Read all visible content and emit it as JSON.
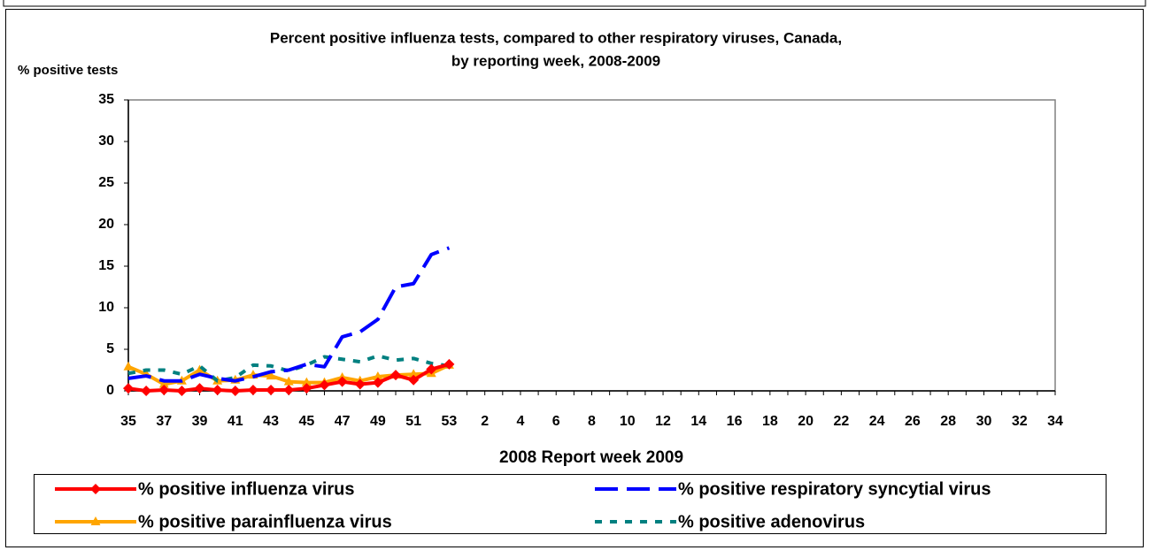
{
  "chart_data": {
    "type": "line",
    "title": [
      "Percent positive influenza tests, compared to other respiratory viruses, Canada,",
      "by reporting week, 2008-2009"
    ],
    "y_label": "% positive tests",
    "x_label": "2008  Report week  2009",
    "categories": [
      "35",
      null,
      "37",
      null,
      "39",
      null,
      "41",
      null,
      "43",
      null,
      "45",
      null,
      "47",
      null,
      "49",
      null,
      "51",
      null,
      "53",
      null,
      "2",
      null,
      "4",
      null,
      "6",
      null,
      "8",
      null,
      "10",
      null,
      "12",
      null,
      "14",
      null,
      "16",
      null,
      "18",
      null,
      "20",
      null,
      "22",
      null,
      "24",
      null,
      "26",
      null,
      "28",
      null,
      "30",
      null,
      "32",
      null,
      "34"
    ],
    "ylim": [
      0,
      35
    ],
    "yticks": [
      0,
      5,
      10,
      15,
      20,
      25,
      30,
      35
    ],
    "grid": false,
    "series": [
      {
        "name": "% positive influenza virus",
        "color": "#ff0000",
        "style": "solid",
        "marker": "diamond",
        "values": [
          0.3,
          0,
          0.1,
          0,
          0.3,
          0.1,
          0,
          0.1,
          0.1,
          0.1,
          0.3,
          0.7,
          1.1,
          0.8,
          1,
          1.9,
          1.3,
          2.6,
          3.2,
          null,
          null,
          null,
          null,
          null,
          null,
          null,
          null,
          null,
          null,
          null,
          null,
          null,
          null,
          null,
          null,
          null,
          null,
          null,
          null,
          null,
          null,
          null,
          null,
          null,
          null,
          null,
          null,
          null,
          null,
          null,
          null,
          null,
          null
        ]
      },
      {
        "name": "% positive respiratory syncytial virus",
        "color": "#0000ff",
        "style": "dashed",
        "marker": "none",
        "values": [
          1.5,
          1.8,
          1.2,
          1.2,
          2,
          1.5,
          1.2,
          1.7,
          2.3,
          2.5,
          3.2,
          2.9,
          6.5,
          7.1,
          8.6,
          12.5,
          12.9,
          16.4,
          17.2,
          null,
          null,
          null,
          null,
          null,
          null,
          null,
          null,
          null,
          null,
          null,
          null,
          null,
          null,
          null,
          null,
          null,
          null,
          null,
          null,
          null,
          null,
          null,
          null,
          null,
          null,
          null,
          null,
          null,
          null,
          null,
          null,
          null,
          null
        ]
      },
      {
        "name": "% positive parainfluenza virus",
        "color": "#ffa500",
        "style": "solid",
        "marker": "triangle",
        "values": [
          2.9,
          2,
          0.8,
          1.2,
          2.5,
          1.2,
          1.3,
          1.9,
          1.8,
          1.1,
          1,
          1,
          1.6,
          1.2,
          1.7,
          1.9,
          2,
          2.1,
          3.1,
          null,
          null,
          null,
          null,
          null,
          null,
          null,
          null,
          null,
          null,
          null,
          null,
          null,
          null,
          null,
          null,
          null,
          null,
          null,
          null,
          null,
          null,
          null,
          null,
          null,
          null,
          null,
          null,
          null,
          null,
          null,
          null,
          null,
          null
        ]
      },
      {
        "name": "% positive adenovirus",
        "color": "#008080",
        "style": "dotted",
        "marker": "none",
        "values": [
          2.1,
          2.5,
          2.5,
          2,
          3,
          1.2,
          1.6,
          3.1,
          3,
          2.4,
          3.1,
          4.1,
          3.8,
          3.5,
          4.2,
          3.7,
          3.9,
          3.3,
          3,
          null,
          null,
          null,
          null,
          null,
          null,
          null,
          null,
          null,
          null,
          null,
          null,
          null,
          null,
          null,
          null,
          null,
          null,
          null,
          null,
          null,
          null,
          null,
          null,
          null,
          null,
          null,
          null,
          null,
          null,
          null,
          null,
          null,
          null
        ]
      }
    ]
  }
}
